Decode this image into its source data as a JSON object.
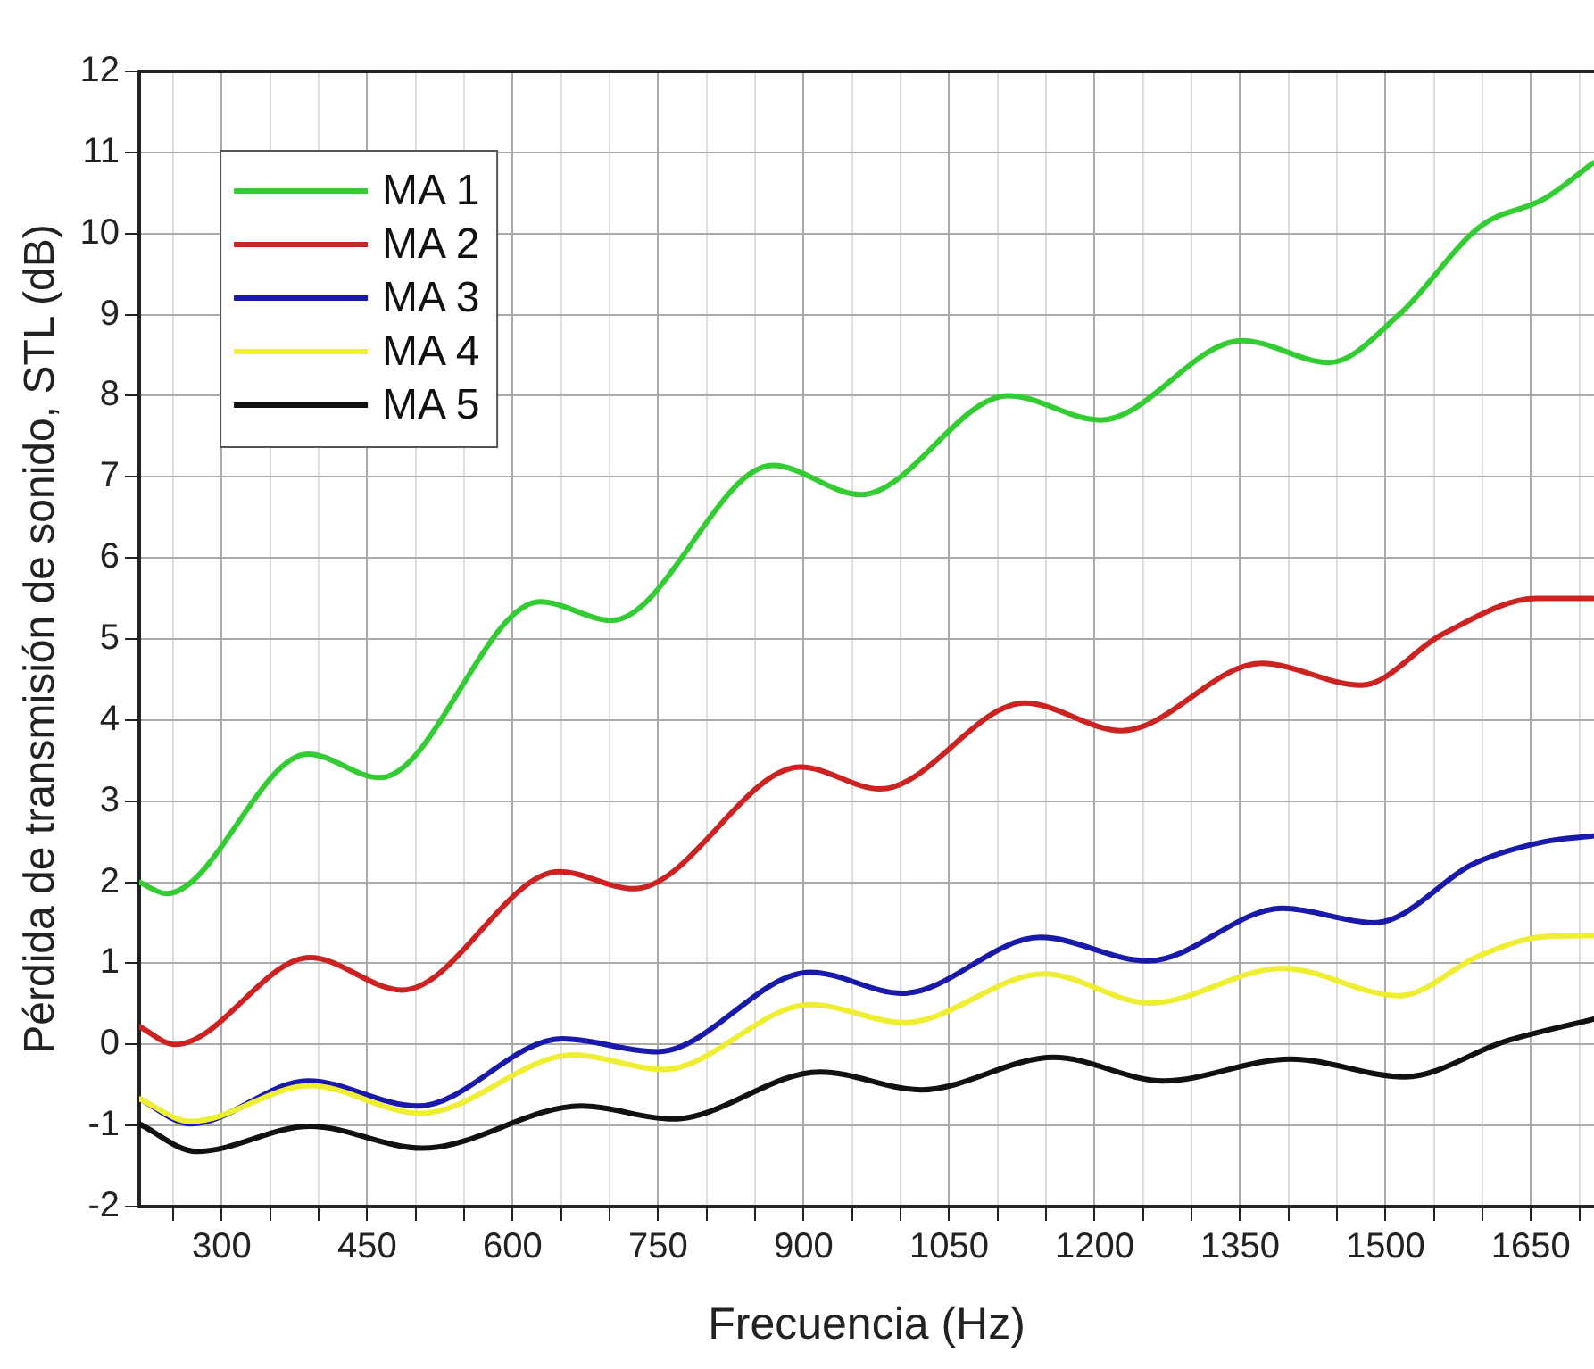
{
  "chart_data": {
    "type": "line",
    "xlabel": "Frecuencia (Hz)",
    "ylabel": "Pérdida de transmisión de sonido, STL (dB)",
    "xlim": [
      215,
      1715
    ],
    "ylim": [
      -2,
      12
    ],
    "xticks": [
      {
        "value": 250,
        "label": null
      },
      300,
      {
        "value": 350,
        "label": null
      },
      {
        "value": 400,
        "label": null
      },
      450,
      {
        "value": 500,
        "label": null
      },
      {
        "value": 550,
        "label": null
      },
      600,
      {
        "value": 650,
        "label": null
      },
      {
        "value": 700,
        "label": null
      },
      750,
      {
        "value": 800,
        "label": null
      },
      {
        "value": 850,
        "label": null
      },
      900,
      {
        "value": 950,
        "label": null
      },
      {
        "value": 1000,
        "label": null
      },
      1050,
      {
        "value": 1100,
        "label": null
      },
      {
        "value": 1150,
        "label": null
      },
      1200,
      {
        "value": 1250,
        "label": null
      },
      {
        "value": 1300,
        "label": null
      },
      1350,
      {
        "value": 1400,
        "label": null
      },
      {
        "value": 1450,
        "label": null
      },
      1500,
      {
        "value": 1550,
        "label": null
      },
      {
        "value": 1600,
        "label": null
      },
      1650,
      {
        "value": 1700,
        "label": null
      }
    ],
    "yticks": [
      -2,
      -1,
      0,
      1,
      2,
      3,
      4,
      5,
      6,
      7,
      8,
      9,
      10,
      11,
      12
    ],
    "grid": true,
    "legend": "top left",
    "marker": "none",
    "line_style": "solid",
    "series": [
      {
        "name": "MA 1",
        "color": "#33cc33",
        "x": [
          215,
          243,
          389,
          463,
          628,
          702,
          868,
          959,
          1111,
          1206,
          1352,
          1442,
          1514,
          1598,
          1664,
          1714
        ],
        "values": [
          2.0,
          1.86,
          3.58,
          3.29,
          5.46,
          5.23,
          7.14,
          6.78,
          8.0,
          7.7,
          8.68,
          8.41,
          9.0,
          10.09,
          10.43,
          10.87
        ]
      },
      {
        "name": "MA 2",
        "color": "#cc2222",
        "x": [
          215,
          252,
          391,
          486,
          648,
          725,
          897,
          979,
          1128,
          1228,
          1372,
          1475,
          1559,
          1656,
          1714
        ],
        "values": [
          0.22,
          0.0,
          1.07,
          0.67,
          2.13,
          1.92,
          3.42,
          3.15,
          4.21,
          3.87,
          4.7,
          4.43,
          5.06,
          5.5,
          5.5
        ]
      },
      {
        "name": "MA 3",
        "color": "#1a1aaa",
        "x": [
          215,
          268,
          389,
          502,
          651,
          749,
          907,
          1002,
          1144,
          1255,
          1394,
          1489,
          1593,
          1664,
          1714
        ],
        "values": [
          -0.67,
          -0.98,
          -0.45,
          -0.76,
          0.07,
          -0.09,
          0.89,
          0.63,
          1.32,
          1.03,
          1.68,
          1.5,
          2.24,
          2.5,
          2.57
        ]
      },
      {
        "name": "MA 4",
        "color": "#eeee33",
        "x": [
          215,
          268,
          391,
          505,
          663,
          755,
          907,
          1004,
          1148,
          1257,
          1394,
          1514,
          1598,
          1664,
          1714
        ],
        "values": [
          -0.67,
          -0.95,
          -0.51,
          -0.85,
          -0.13,
          -0.31,
          0.49,
          0.27,
          0.87,
          0.51,
          0.94,
          0.6,
          1.1,
          1.33,
          1.34
        ]
      },
      {
        "name": "MA 5",
        "color": "#111111",
        "x": [
          215,
          274,
          391,
          507,
          671,
          765,
          917,
          1021,
          1158,
          1271,
          1402,
          1520,
          1624,
          1714
        ],
        "values": [
          -0.98,
          -1.32,
          -1.01,
          -1.28,
          -0.76,
          -0.92,
          -0.34,
          -0.56,
          -0.16,
          -0.45,
          -0.18,
          -0.4,
          0.04,
          0.31
        ]
      }
    ]
  }
}
